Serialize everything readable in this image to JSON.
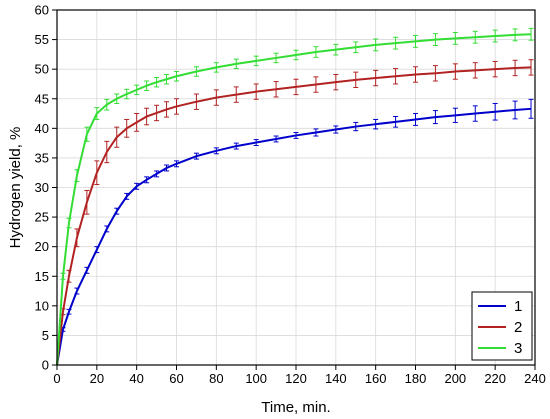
{
  "chart_data": {
    "type": "line",
    "title": "",
    "xlabel": "Time, min.",
    "ylabel": "Hydrogen yield, %",
    "xlim": [
      0,
      240
    ],
    "ylim": [
      0,
      60
    ],
    "x_ticks": [
      "0",
      "20",
      "40",
      "60",
      "80",
      "100",
      "120",
      "140",
      "160",
      "180",
      "200",
      "220",
      "240"
    ],
    "y_ticks": [
      "0",
      "5",
      "10",
      "15",
      "20",
      "25",
      "30",
      "35",
      "40",
      "45",
      "50",
      "55",
      "60"
    ],
    "grid": true,
    "legend_position": "bottom-right",
    "error_bars": true,
    "series": [
      {
        "name": "1",
        "color": "#0000cc",
        "x": [
          0,
          3,
          6,
          10,
          15,
          20,
          25,
          30,
          35,
          40,
          45,
          50,
          55,
          60,
          70,
          80,
          90,
          100,
          110,
          120,
          130,
          140,
          150,
          160,
          170,
          180,
          190,
          200,
          210,
          220,
          230,
          238
        ],
        "y": [
          0,
          6,
          9,
          12.5,
          16,
          19.5,
          23,
          26,
          28.5,
          30.2,
          31.3,
          32.3,
          33.3,
          34,
          35.3,
          36.2,
          37,
          37.6,
          38.2,
          38.8,
          39.3,
          39.8,
          40.3,
          40.7,
          41.1,
          41.5,
          41.9,
          42.2,
          42.5,
          42.8,
          43.1,
          43.3
        ],
        "err": [
          0,
          0.3,
          0.4,
          0.5,
          0.5,
          0.5,
          0.5,
          0.5,
          0.5,
          0.5,
          0.5,
          0.5,
          0.5,
          0.5,
          0.5,
          0.5,
          0.5,
          0.5,
          0.5,
          0.5,
          0.6,
          0.6,
          0.7,
          0.8,
          0.9,
          1.0,
          1.1,
          1.2,
          1.3,
          1.4,
          1.5,
          1.6
        ]
      },
      {
        "name": "2",
        "color": "#b22222",
        "x": [
          0,
          3,
          6,
          10,
          15,
          20,
          25,
          30,
          35,
          40,
          45,
          50,
          55,
          60,
          70,
          80,
          90,
          100,
          110,
          120,
          130,
          140,
          150,
          160,
          170,
          180,
          190,
          200,
          210,
          220,
          230,
          238
        ],
        "y": [
          0,
          9,
          15,
          21.5,
          27.5,
          32.5,
          36,
          38.5,
          40,
          41,
          42,
          42.6,
          43.2,
          43.7,
          44.5,
          45.2,
          45.7,
          46.2,
          46.6,
          47,
          47.4,
          47.8,
          48.2,
          48.5,
          48.8,
          49.1,
          49.3,
          49.6,
          49.8,
          50,
          50.2,
          50.3
        ],
        "err": [
          0,
          0.5,
          1.0,
          1.5,
          2.0,
          2.0,
          1.8,
          1.7,
          1.5,
          1.5,
          1.4,
          1.3,
          1.3,
          1.3,
          1.3,
          1.3,
          1.3,
          1.3,
          1.3,
          1.3,
          1.3,
          1.3,
          1.3,
          1.3,
          1.3,
          1.3,
          1.3,
          1.3,
          1.3,
          1.3,
          1.3,
          1.3
        ]
      },
      {
        "name": "3",
        "color": "#33dd33",
        "x": [
          0,
          3,
          6,
          10,
          15,
          20,
          25,
          30,
          35,
          40,
          45,
          50,
          55,
          60,
          70,
          80,
          90,
          100,
          110,
          120,
          130,
          140,
          150,
          160,
          170,
          180,
          190,
          200,
          210,
          220,
          230,
          238
        ],
        "y": [
          0,
          15,
          24,
          32,
          39,
          42.5,
          44,
          45,
          45.8,
          46.5,
          47.2,
          47.8,
          48.3,
          48.8,
          49.6,
          50.3,
          50.9,
          51.4,
          51.9,
          52.4,
          52.9,
          53.3,
          53.7,
          54.1,
          54.4,
          54.7,
          55,
          55.2,
          55.4,
          55.6,
          55.8,
          55.9
        ],
        "err": [
          0,
          0.5,
          0.8,
          1.0,
          1.2,
          1.0,
          0.9,
          0.8,
          0.8,
          0.8,
          0.8,
          0.8,
          0.8,
          0.8,
          0.8,
          0.8,
          0.8,
          0.8,
          0.8,
          0.8,
          0.9,
          0.9,
          0.9,
          1.0,
          1.0,
          1.0,
          1.0,
          1.0,
          1.0,
          1.0,
          1.0,
          1.0
        ]
      }
    ]
  }
}
